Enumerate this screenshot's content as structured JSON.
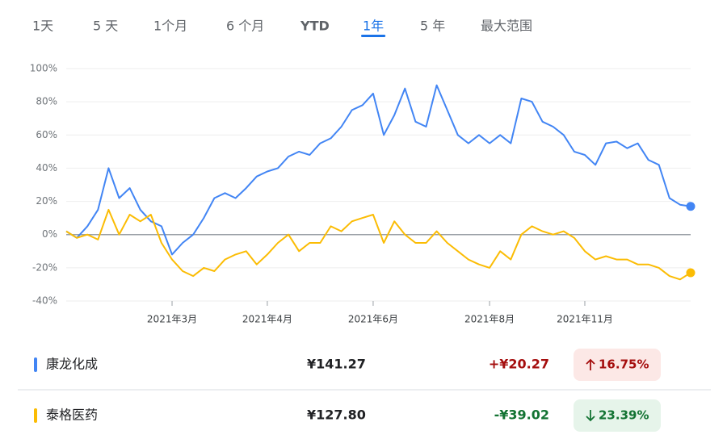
{
  "tabs": {
    "items": [
      "1天",
      "5 天",
      "1个月",
      "6 个月",
      "YTD",
      "1年",
      "5 年",
      "最大范围"
    ],
    "active": 5
  },
  "chart_data": {
    "type": "line",
    "categories": [
      null,
      null,
      null,
      null,
      null,
      null,
      null,
      null,
      null,
      null,
      "2021年3月",
      null,
      null,
      null,
      null,
      null,
      null,
      null,
      null,
      "2021年4月",
      null,
      null,
      null,
      null,
      null,
      null,
      null,
      null,
      null,
      "2021年6月",
      null,
      null,
      null,
      null,
      null,
      null,
      null,
      null,
      null,
      null,
      "2021年8月",
      null,
      null,
      null,
      null,
      null,
      null,
      null,
      null,
      "2021年11月",
      null,
      null,
      null,
      null,
      null,
      null,
      null,
      null,
      null,
      null
    ],
    "series": [
      {
        "name": "康龙化成",
        "color": "#4285f4",
        "values": [
          2,
          -2,
          5,
          15,
          40,
          22,
          28,
          15,
          8,
          5,
          -12,
          -5,
          0,
          10,
          22,
          25,
          22,
          28,
          35,
          38,
          40,
          47,
          50,
          48,
          55,
          58,
          65,
          75,
          78,
          85,
          60,
          72,
          88,
          68,
          65,
          90,
          75,
          60,
          55,
          60,
          55,
          60,
          55,
          82,
          80,
          68,
          65,
          60,
          50,
          48,
          42,
          55,
          56,
          52,
          55,
          45,
          42,
          22,
          18,
          17
        ]
      },
      {
        "name": "泰格医药",
        "color": "#fbbc04",
        "values": [
          2,
          -2,
          0,
          -3,
          15,
          0,
          12,
          8,
          12,
          -5,
          -15,
          -22,
          -25,
          -20,
          -22,
          -15,
          -12,
          -10,
          -18,
          -12,
          -5,
          0,
          -10,
          -5,
          -5,
          5,
          2,
          8,
          10,
          12,
          -5,
          8,
          0,
          -5,
          -5,
          2,
          -5,
          -10,
          -15,
          -18,
          -20,
          -10,
          -15,
          0,
          5,
          2,
          0,
          2,
          -2,
          -10,
          -15,
          -13,
          -15,
          -15,
          -18,
          -18,
          -20,
          -25,
          -27,
          -23
        ]
      }
    ],
    "ylim": [
      -40,
      100
    ],
    "yticks": [
      {
        "value": -40,
        "label": "-40%"
      },
      {
        "value": -20,
        "label": "-20%"
      },
      {
        "value": 0,
        "label": "0%"
      },
      {
        "value": 20,
        "label": "20%"
      },
      {
        "value": 40,
        "label": "40%"
      },
      {
        "value": 60,
        "label": "60%"
      },
      {
        "value": 80,
        "label": "80%"
      },
      {
        "value": 100,
        "label": "100%"
      }
    ],
    "grid": true
  },
  "table": {
    "rows": [
      {
        "name": "康龙化成",
        "price": "¥141.27",
        "change": "+¥20.27",
        "change_pct": "16.75%",
        "direction": "up"
      },
      {
        "name": "泰格医药",
        "price": "¥127.80",
        "change": "-¥39.02",
        "change_pct": "23.39%",
        "direction": "down"
      }
    ]
  }
}
